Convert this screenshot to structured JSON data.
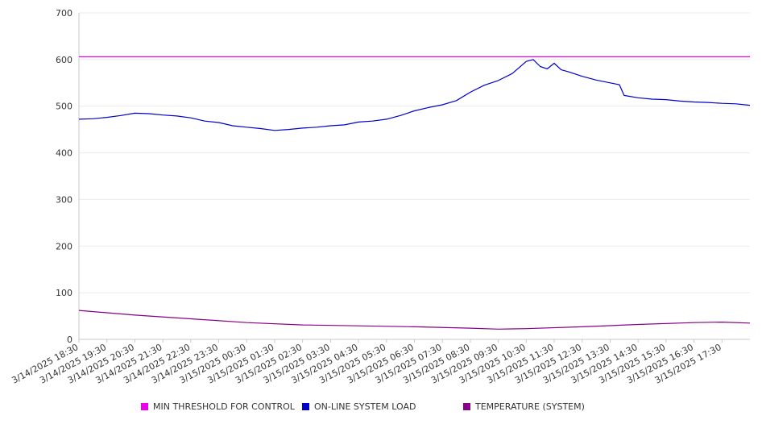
{
  "chart_data": {
    "type": "line",
    "title": "",
    "xlabel": "",
    "ylabel": "",
    "ylim": [
      0,
      700
    ],
    "yticks": [
      0,
      100,
      200,
      300,
      400,
      500,
      600,
      700
    ],
    "grid": "horizontal",
    "legend_position": "bottom",
    "x_tick_labels": [
      "3/14/2025 18:30",
      "3/14/2025 19:30",
      "3/14/2025 20:30",
      "3/14/2025 21:30",
      "3/14/2025 22:30",
      "3/14/2025 23:30",
      "3/15/2025 00:30",
      "3/15/2025 01:30",
      "3/15/2025 02:30",
      "3/15/2025 03:30",
      "3/15/2025 04:30",
      "3/15/2025 05:30",
      "3/15/2025 06:30",
      "3/15/2025 07:30",
      "3/15/2025 08:30",
      "3/15/2025 09:30",
      "3/15/2025 10:30",
      "3/15/2025 11:30",
      "3/15/2025 12:30",
      "3/15/2025 13:30",
      "3/15/2025 14:30",
      "3/15/2025 15:30",
      "3/15/2025 16:30",
      "3/15/2025 17:30"
    ],
    "x_range": [
      "3/14/2025 18:30",
      "3/15/2025 18:30"
    ],
    "series": [
      {
        "name": "MIN THRESHOLD FOR CONTROL",
        "color": "#ee00ee",
        "x": [
          "3/14/2025 18:30",
          "3/15/2025 18:30"
        ],
        "y": [
          606,
          606
        ]
      },
      {
        "name": "ON-LINE SYSTEM LOAD",
        "color": "#0000cc",
        "x": [
          "3/14/2025 18:30",
          "3/14/2025 19:00",
          "3/14/2025 19:30",
          "3/14/2025 20:00",
          "3/14/2025 20:30",
          "3/14/2025 21:00",
          "3/14/2025 21:30",
          "3/14/2025 22:00",
          "3/14/2025 22:30",
          "3/14/2025 23:00",
          "3/14/2025 23:30",
          "3/15/2025 00:00",
          "3/15/2025 00:30",
          "3/15/2025 01:00",
          "3/15/2025 01:30",
          "3/15/2025 02:00",
          "3/15/2025 02:30",
          "3/15/2025 03:00",
          "3/15/2025 03:30",
          "3/15/2025 04:00",
          "3/15/2025 04:30",
          "3/15/2025 05:00",
          "3/15/2025 05:30",
          "3/15/2025 06:00",
          "3/15/2025 06:30",
          "3/15/2025 07:00",
          "3/15/2025 07:30",
          "3/15/2025 08:00",
          "3/15/2025 08:30",
          "3/15/2025 09:00",
          "3/15/2025 09:30",
          "3/15/2025 10:00",
          "3/15/2025 10:15",
          "3/15/2025 10:30",
          "3/15/2025 10:45",
          "3/15/2025 11:00",
          "3/15/2025 11:15",
          "3/15/2025 11:30",
          "3/15/2025 11:45",
          "3/15/2025 12:00",
          "3/15/2025 12:30",
          "3/15/2025 13:00",
          "3/15/2025 13:30",
          "3/15/2025 13:50",
          "3/15/2025 14:00",
          "3/15/2025 14:30",
          "3/15/2025 15:00",
          "3/15/2025 15:30",
          "3/15/2025 16:00",
          "3/15/2025 16:30",
          "3/15/2025 17:00",
          "3/15/2025 17:30",
          "3/15/2025 18:00",
          "3/15/2025 18:30"
        ],
        "y": [
          472,
          473,
          476,
          480,
          485,
          484,
          481,
          479,
          475,
          468,
          465,
          458,
          455,
          452,
          448,
          450,
          453,
          455,
          458,
          460,
          466,
          468,
          472,
          480,
          490,
          497,
          503,
          512,
          530,
          545,
          555,
          570,
          583,
          596,
          600,
          585,
          580,
          592,
          578,
          574,
          564,
          556,
          550,
          546,
          523,
          518,
          515,
          514,
          511,
          509,
          508,
          506,
          505,
          502
        ]
      },
      {
        "name": "TEMPERATURE (SYSTEM)",
        "color": "#880088",
        "x": [
          "3/14/2025 18:30",
          "3/14/2025 20:30",
          "3/14/2025 22:30",
          "3/15/2025 00:30",
          "3/15/2025 02:30",
          "3/15/2025 04:30",
          "3/15/2025 06:30",
          "3/15/2025 08:30",
          "3/15/2025 09:30",
          "3/15/2025 10:30",
          "3/15/2025 12:30",
          "3/15/2025 14:30",
          "3/15/2025 16:30",
          "3/15/2025 17:30",
          "3/15/2025 18:30"
        ],
        "y": [
          62,
          52,
          44,
          36,
          31,
          29,
          27,
          24,
          22,
          23,
          27,
          32,
          36,
          37,
          35
        ]
      }
    ]
  }
}
